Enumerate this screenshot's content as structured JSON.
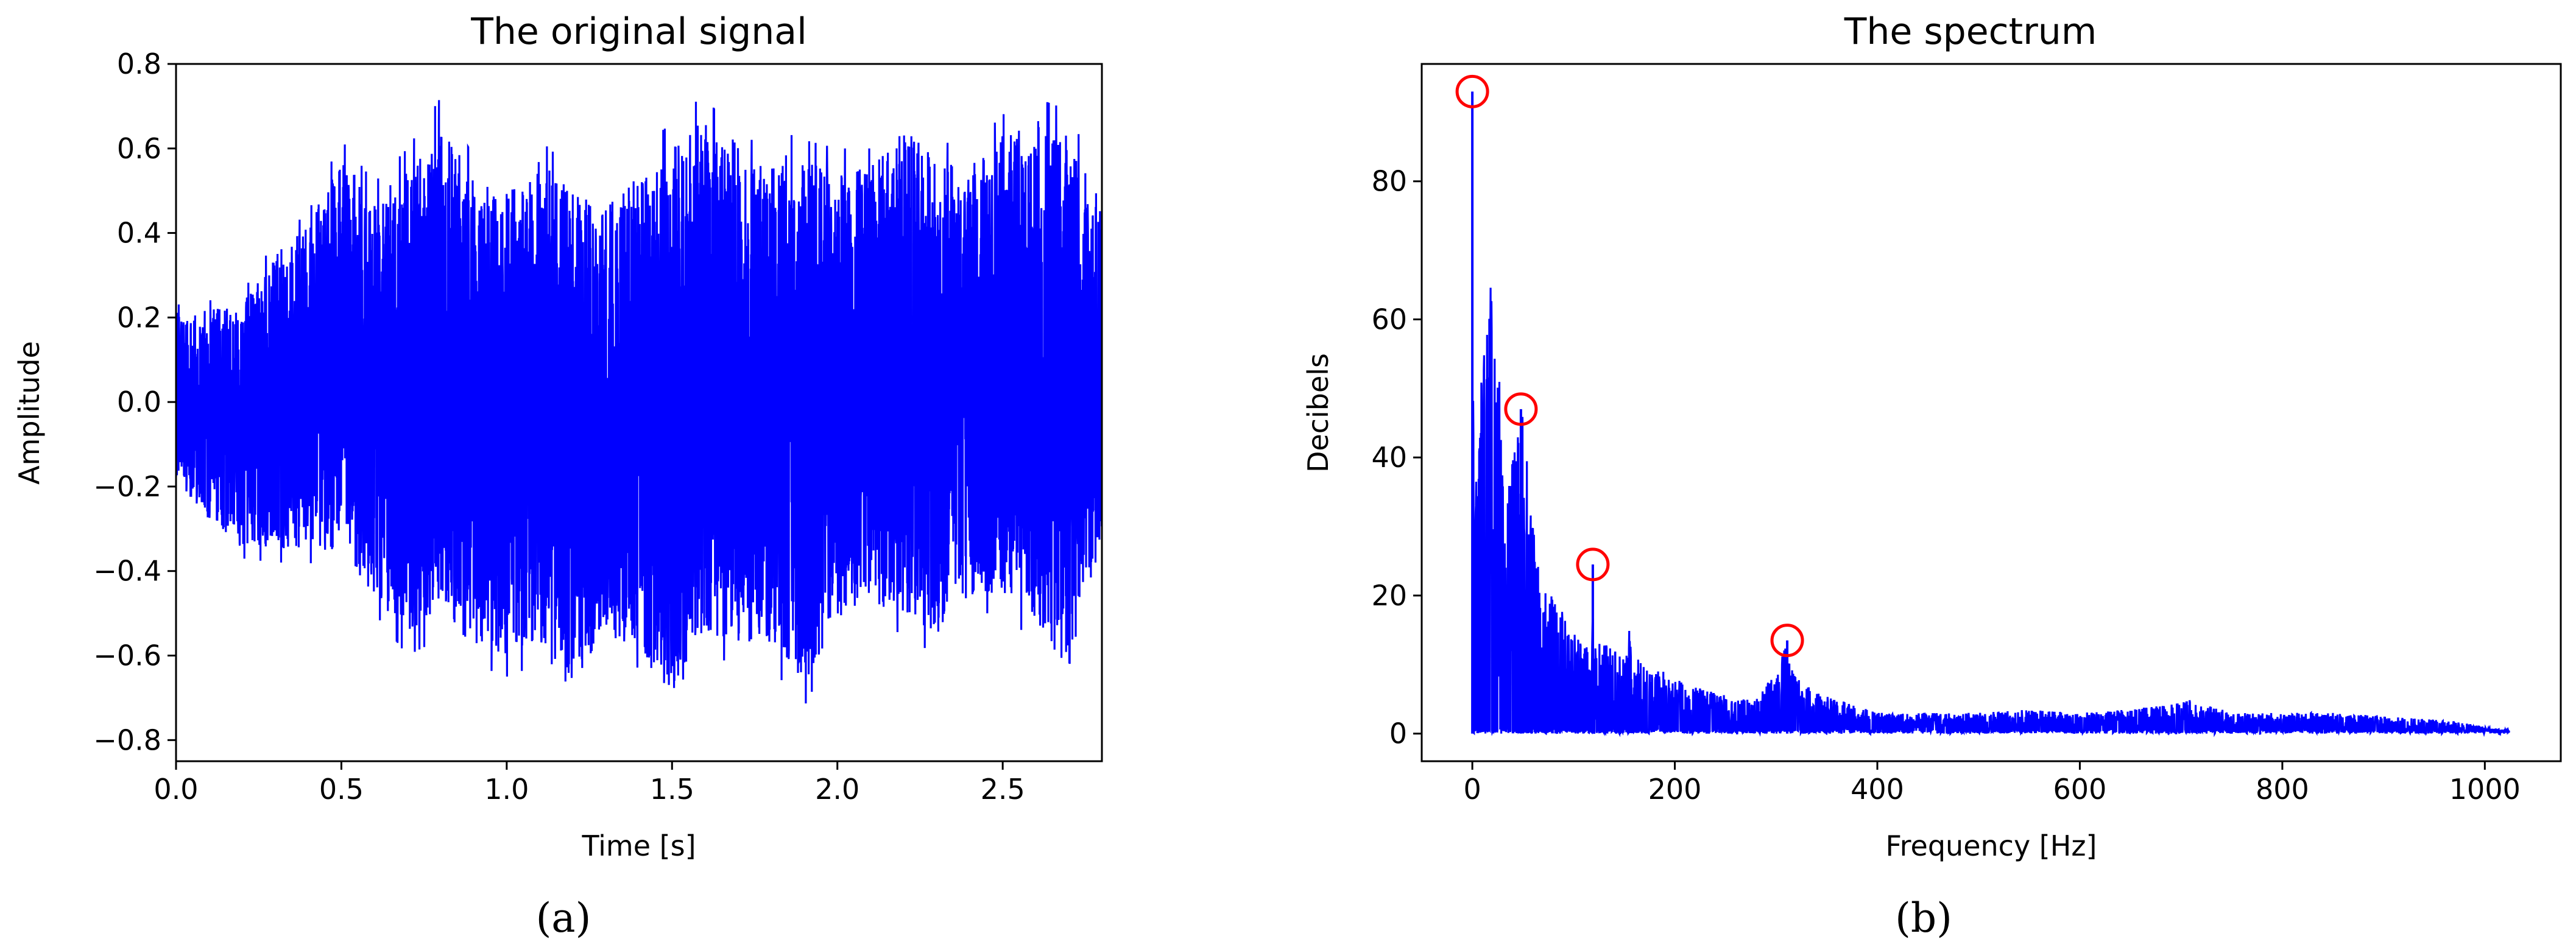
{
  "colors": {
    "signal": "#0000ff",
    "spectrum": "#0000ff",
    "peak_marker": "#ff0000"
  },
  "chart_data": [
    {
      "type": "line",
      "panel_label": "(a)",
      "title": "The original signal",
      "xlabel": "Time [s]",
      "ylabel": "Amplitude",
      "xlim": [
        0,
        2.8
      ],
      "ylim": [
        -0.85,
        0.8
      ],
      "xticks": [
        0.0,
        0.5,
        1.0,
        1.5,
        2.0,
        2.5
      ],
      "xtick_labels": [
        "0.0",
        "0.5",
        "1.0",
        "1.5",
        "2.0",
        "2.5"
      ],
      "yticks": [
        -0.8,
        -0.6,
        -0.4,
        -0.2,
        0.0,
        0.2,
        0.4,
        0.6,
        0.8
      ],
      "ytick_labels": [
        "−0.8",
        "−0.6",
        "−0.4",
        "−0.2",
        "0.0",
        "0.2",
        "0.4",
        "0.6",
        "0.8"
      ],
      "grid": false,
      "series": [
        {
          "color": "#0000ff",
          "x": [
            0.0,
            0.1,
            0.2,
            0.3,
            0.4,
            0.5,
            0.6,
            0.7,
            0.8,
            0.9,
            1.0,
            1.1,
            1.2,
            1.3,
            1.4,
            1.5,
            1.6,
            1.7,
            1.8,
            1.9,
            2.0,
            2.1,
            2.2,
            2.3,
            2.4,
            2.5,
            2.6,
            2.7,
            2.8
          ],
          "upper": [
            0.23,
            0.24,
            0.26,
            0.38,
            0.45,
            0.62,
            0.52,
            0.6,
            0.72,
            0.58,
            0.55,
            0.62,
            0.55,
            0.5,
            0.6,
            0.66,
            0.73,
            0.6,
            0.65,
            0.62,
            0.6,
            0.6,
            0.7,
            0.62,
            0.6,
            0.68,
            0.72,
            0.69,
            0.5
          ],
          "lower": [
            -0.2,
            -0.3,
            -0.37,
            -0.38,
            -0.38,
            -0.4,
            -0.5,
            -0.6,
            -0.56,
            -0.62,
            -0.65,
            -0.62,
            -0.77,
            -0.6,
            -0.63,
            -0.77,
            -0.6,
            -0.62,
            -0.63,
            -0.72,
            -0.57,
            -0.52,
            -0.55,
            -0.6,
            -0.5,
            -0.5,
            -0.57,
            -0.7,
            -0.38
          ]
        }
      ]
    },
    {
      "type": "line",
      "panel_label": "(b)",
      "title": "The spectrum",
      "xlabel": "Frequency [Hz]",
      "ylabel": "Decibels",
      "xlim": [
        -50,
        1075
      ],
      "ylim": [
        -4,
        97
      ],
      "xticks": [
        0,
        200,
        400,
        600,
        800,
        1000
      ],
      "xtick_labels": [
        "0",
        "200",
        "400",
        "600",
        "800",
        "1000"
      ],
      "yticks": [
        0,
        20,
        40,
        60,
        80
      ],
      "ytick_labels": [
        "0",
        "20",
        "40",
        "60",
        "80"
      ],
      "grid": false,
      "series": [
        {
          "color": "#0000ff",
          "x": [
            0,
            2,
            5,
            10,
            15,
            20,
            25,
            30,
            35,
            40,
            45,
            50,
            55,
            60,
            65,
            70,
            75,
            80,
            85,
            90,
            100,
            110,
            118,
            120,
            122,
            130,
            140,
            150,
            155,
            160,
            170,
            180,
            190,
            200,
            220,
            240,
            260,
            280,
            300,
            305,
            310,
            315,
            320,
            340,
            360,
            380,
            400,
            450,
            500,
            550,
            600,
            650,
            700,
            710,
            750,
            800,
            850,
            900,
            950,
            980,
            1000,
            1024
          ],
          "values": [
            93,
            40,
            35,
            60,
            73,
            65,
            57,
            42,
            35,
            40,
            45,
            47,
            40,
            30,
            25,
            23,
            20,
            20,
            17,
            18,
            15,
            13,
            14,
            24,
            14,
            13,
            12,
            11,
            15,
            12,
            10,
            9,
            9,
            8,
            7,
            6,
            5,
            5,
            9,
            11,
            13,
            10,
            8,
            6,
            5,
            4,
            3,
            3,
            3,
            3.5,
            3,
            3.5,
            4.5,
            5,
            3,
            3,
            3,
            2.5,
            2,
            1.5,
            1,
            0.5
          ]
        }
      ],
      "peaks": [
        {
          "x": 0,
          "y": 93
        },
        {
          "x": 48,
          "y": 47
        },
        {
          "x": 119,
          "y": 24.5
        },
        {
          "x": 311,
          "y": 13.5
        }
      ]
    }
  ]
}
